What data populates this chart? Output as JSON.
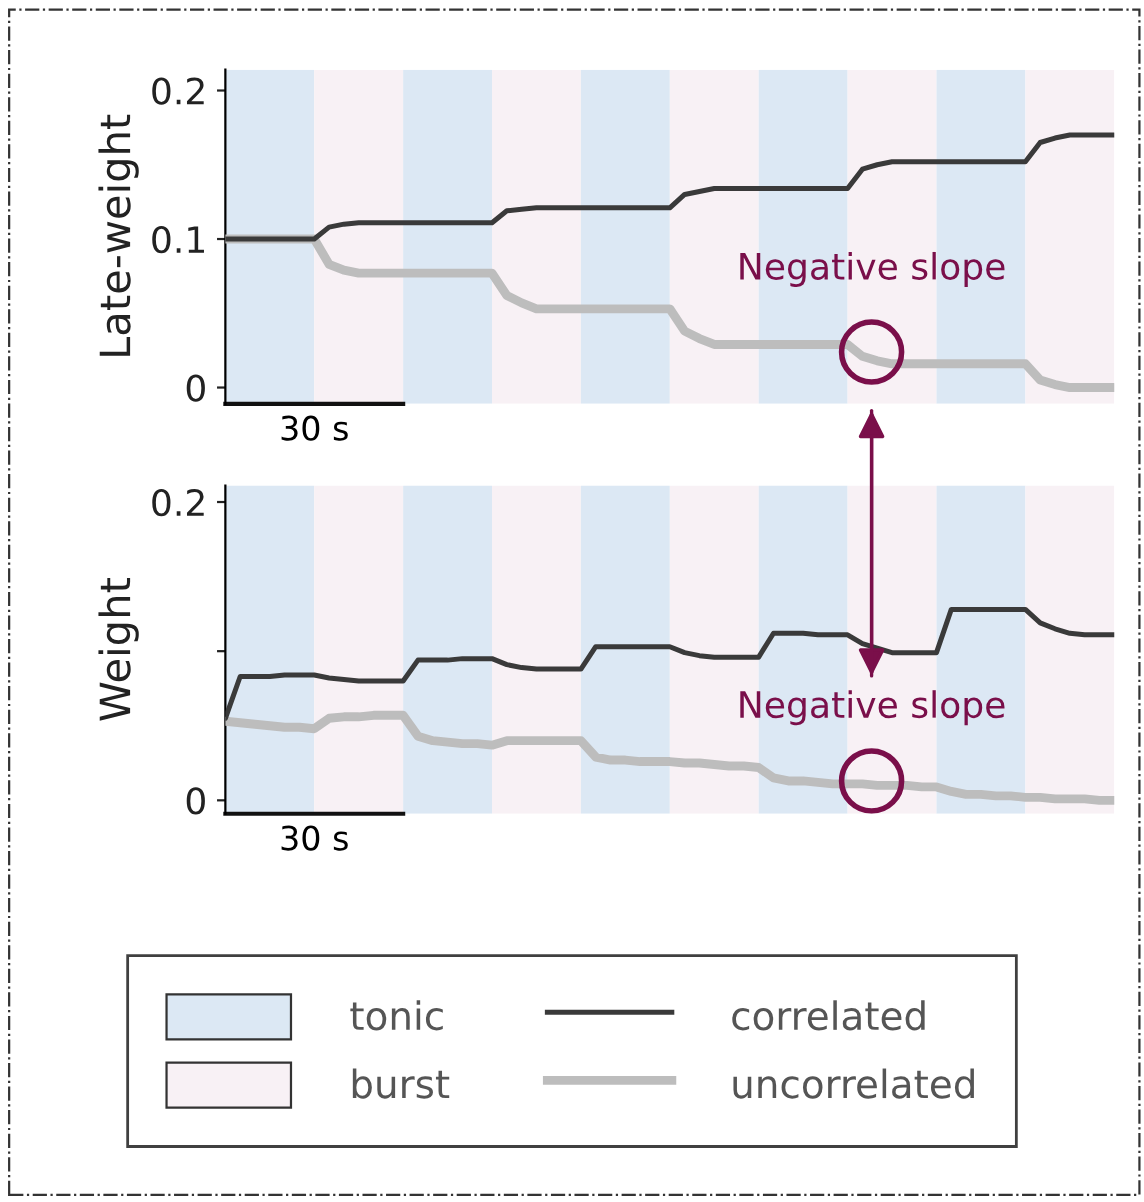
{
  "chart_data": [
    {
      "type": "line",
      "ylabel": "Late-weight",
      "categories": [
        null,
        null,
        null,
        null,
        null,
        null,
        null,
        null,
        null,
        null,
        null,
        null,
        null,
        null,
        null,
        null,
        null,
        null,
        null,
        null,
        null,
        null,
        null,
        null,
        null,
        null,
        null,
        null,
        null,
        null,
        null,
        null,
        null,
        null,
        null,
        null,
        null,
        null,
        null,
        null,
        null,
        null,
        null,
        null,
        null,
        null,
        null,
        null,
        null,
        null,
        null,
        null,
        null,
        null,
        null,
        null,
        null,
        null,
        null,
        null,
        null
      ],
      "ylim": [
        -0.011,
        0.214
      ],
      "yticks": [
        0,
        0.1,
        0.2
      ],
      "grid": false,
      "legend": "bottom",
      "series": [
        {
          "name": "correlated",
          "color": "#3a3a3a",
          "values": [
            0.1,
            0.1,
            0.1,
            0.1,
            0.1,
            0.1,
            0.1,
            0.108,
            0.11,
            0.111,
            0.111,
            0.111,
            0.111,
            0.111,
            0.111,
            0.111,
            0.111,
            0.111,
            0.111,
            0.119,
            0.12,
            0.121,
            0.121,
            0.121,
            0.121,
            0.121,
            0.121,
            0.121,
            0.121,
            0.121,
            0.121,
            0.13,
            0.132,
            0.134,
            0.134,
            0.134,
            0.134,
            0.134,
            0.134,
            0.134,
            0.134,
            0.134,
            0.134,
            0.147,
            0.15,
            0.152,
            0.152,
            0.152,
            0.152,
            0.152,
            0.152,
            0.152,
            0.152,
            0.152,
            0.152,
            0.165,
            0.168,
            0.17,
            0.17,
            0.17,
            0.17
          ]
        },
        {
          "name": "uncorrelated",
          "color": "#bdbdbd",
          "values": [
            0.1,
            0.1,
            0.1,
            0.1,
            0.1,
            0.1,
            0.1,
            0.083,
            0.079,
            0.077,
            0.077,
            0.077,
            0.077,
            0.077,
            0.077,
            0.077,
            0.077,
            0.077,
            0.077,
            0.062,
            0.057,
            0.053,
            0.053,
            0.053,
            0.053,
            0.053,
            0.053,
            0.053,
            0.053,
            0.053,
            0.053,
            0.038,
            0.033,
            0.029,
            0.029,
            0.029,
            0.029,
            0.029,
            0.029,
            0.029,
            0.029,
            0.029,
            0.029,
            0.021,
            0.018,
            0.016,
            0.016,
            0.016,
            0.016,
            0.016,
            0.016,
            0.016,
            0.016,
            0.016,
            0.016,
            0.005,
            0.002,
            0.0,
            0.0,
            0.0,
            0.0
          ]
        }
      ],
      "annotations": [
        "Negative slope",
        "30 s",
        "tonic",
        "burst"
      ]
    },
    {
      "type": "line",
      "ylabel": "Weight",
      "categories": [
        null,
        null,
        null,
        null,
        null,
        null,
        null,
        null,
        null,
        null,
        null,
        null,
        null,
        null,
        null,
        null,
        null,
        null,
        null,
        null,
        null,
        null,
        null,
        null,
        null,
        null,
        null,
        null,
        null,
        null,
        null,
        null,
        null,
        null,
        null,
        null,
        null,
        null,
        null,
        null,
        null,
        null,
        null,
        null,
        null,
        null,
        null,
        null,
        null,
        null,
        null,
        null,
        null,
        null,
        null,
        null,
        null,
        null,
        null,
        null,
        null
      ],
      "ylim": [
        -0.009,
        0.211
      ],
      "yticks": [
        0,
        {
          "value": 0.1,
          "label": null
        },
        0.2
      ],
      "grid": false,
      "series": [
        {
          "name": "correlated",
          "color": "#3a3a3a",
          "values": [
            0.055,
            0.083,
            0.083,
            0.083,
            0.084,
            0.084,
            0.084,
            0.082,
            0.081,
            0.08,
            0.08,
            0.08,
            0.08,
            0.094,
            0.094,
            0.094,
            0.095,
            0.095,
            0.095,
            0.091,
            0.089,
            0.088,
            0.088,
            0.088,
            0.088,
            0.103,
            0.103,
            0.103,
            0.103,
            0.103,
            0.103,
            0.099,
            0.097,
            0.096,
            0.096,
            0.096,
            0.096,
            0.112,
            0.112,
            0.112,
            0.111,
            0.111,
            0.111,
            0.105,
            0.102,
            0.099,
            0.099,
            0.099,
            0.099,
            0.128,
            0.128,
            0.128,
            0.128,
            0.128,
            0.128,
            0.119,
            0.115,
            0.112,
            0.111,
            0.111,
            0.111
          ]
        },
        {
          "name": "uncorrelated",
          "color": "#bdbdbd",
          "values": [
            0.053,
            0.052,
            0.051,
            0.05,
            0.049,
            0.049,
            0.048,
            0.055,
            0.056,
            0.056,
            0.057,
            0.057,
            0.057,
            0.043,
            0.04,
            0.039,
            0.038,
            0.038,
            0.037,
            0.04,
            0.04,
            0.04,
            0.04,
            0.04,
            0.04,
            0.029,
            0.027,
            0.027,
            0.026,
            0.026,
            0.026,
            0.025,
            0.025,
            0.024,
            0.023,
            0.023,
            0.022,
            0.015,
            0.013,
            0.013,
            0.012,
            0.011,
            0.011,
            0.011,
            0.01,
            0.01,
            0.01,
            0.009,
            0.009,
            0.006,
            0.004,
            0.004,
            0.003,
            0.003,
            0.002,
            0.002,
            0.001,
            0.001,
            0.001,
            0.0,
            0.0
          ]
        }
      ],
      "annotations": [
        "Negative slope",
        "30 s"
      ]
    }
  ]
}
